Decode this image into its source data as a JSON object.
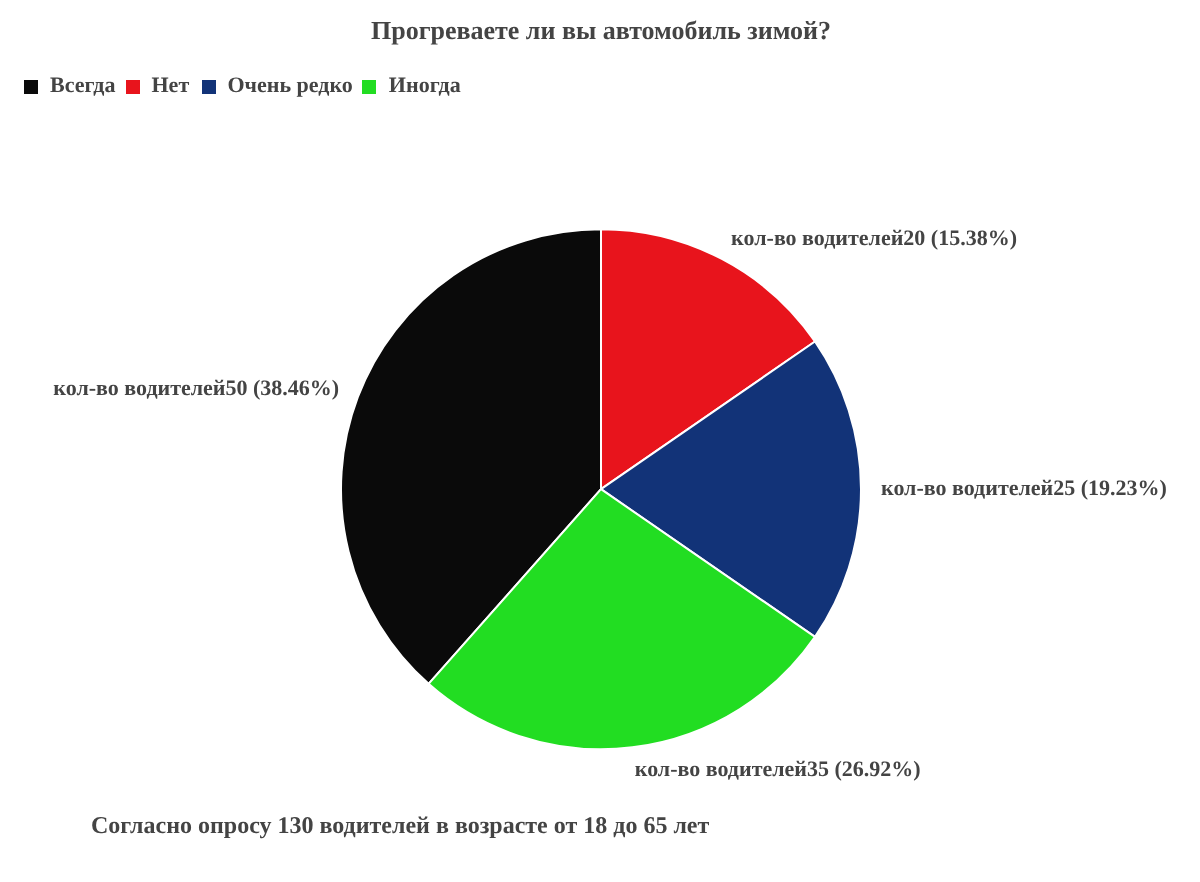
{
  "chart_data": {
    "type": "pie",
    "title": "Прогреваете ли вы автомобиль зимой?",
    "categories": [
      "Всегда",
      "Нет",
      "Очень редко",
      "Иногда"
    ],
    "values": [
      50,
      20,
      25,
      35
    ],
    "colors": [
      "#0a0a0a",
      "#e8141c",
      "#123378",
      "#22dd22"
    ],
    "value_labels": [
      "кол-во водителей50 (38.46%)",
      "кол-во водителей20 (15.38%)",
      "кол-во водителей25 (19.23%)",
      "кол-во водителей35 (26.92%)"
    ],
    "legend": "top left",
    "annotations": [
      "Согласно опросу 130 водителей в возрасте от 18 до 65 лет"
    ]
  }
}
